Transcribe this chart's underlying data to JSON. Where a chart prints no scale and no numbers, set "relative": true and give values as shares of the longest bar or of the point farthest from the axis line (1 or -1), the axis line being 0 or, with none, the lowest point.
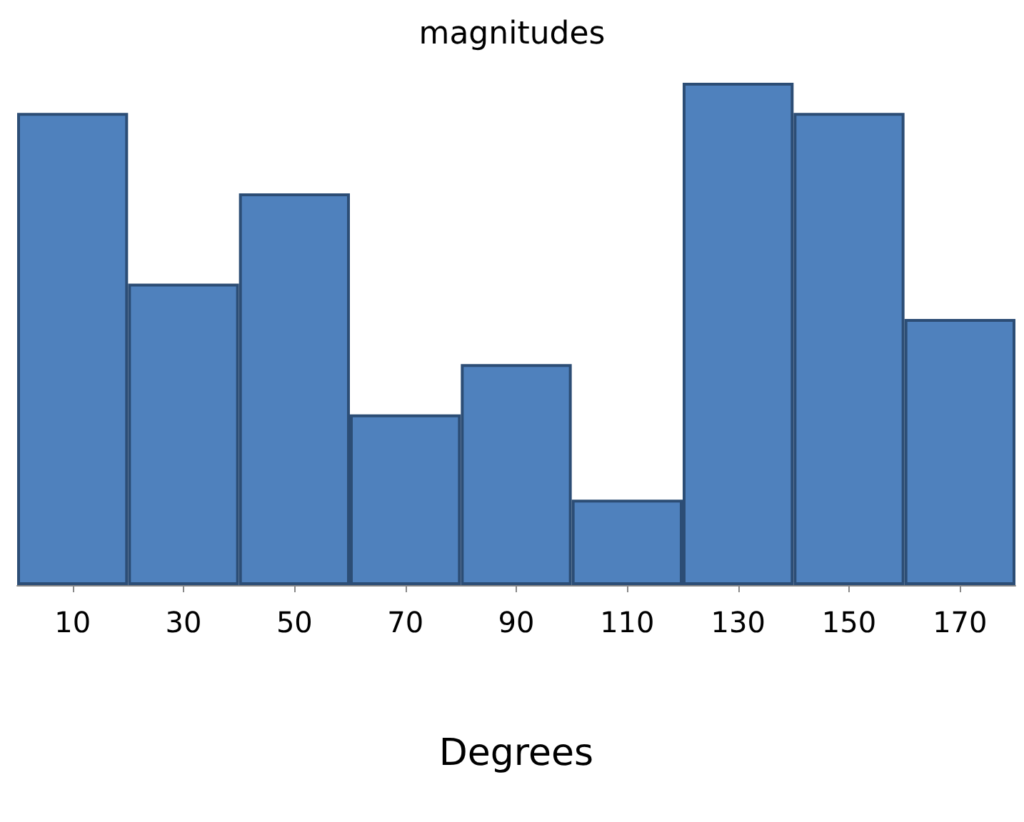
{
  "chart_data": {
    "type": "bar",
    "title": "magnitudes",
    "xlabel": "Degrees",
    "relative": true,
    "categories": [
      "10",
      "30",
      "50",
      "70",
      "90",
      "110",
      "130",
      "150",
      "170"
    ],
    "values": [
      0.94,
      0.6,
      0.78,
      0.34,
      0.44,
      0.17,
      1,
      0.94,
      0.53
    ],
    "color": "#4f81bd",
    "grid": false
  }
}
